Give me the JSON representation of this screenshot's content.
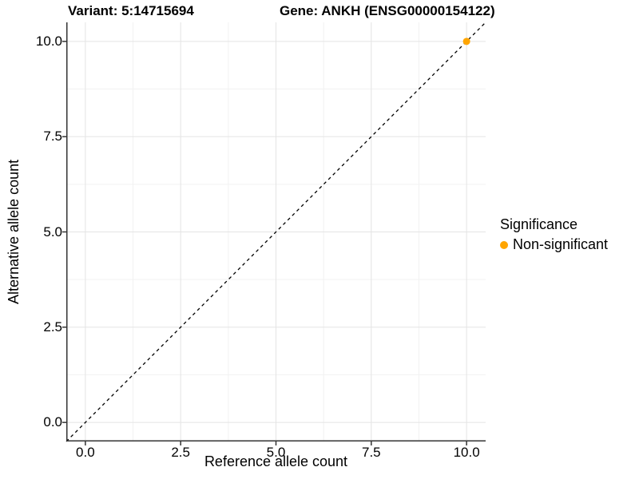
{
  "title": {
    "left": "Variant: 5:14715694",
    "right": "Gene: ANKH (ENSG00000154122)"
  },
  "legend": {
    "title": "Significance",
    "items": [
      {
        "label": "Non-significant",
        "color": "#FFA500"
      }
    ]
  },
  "chart_data": {
    "type": "scatter",
    "title": "Variant: 5:14715694   Gene: ANKH (ENSG00000154122)",
    "xlabel": "Reference allele count",
    "ylabel": "Alternative allele count",
    "xlim": [
      -0.5,
      10.5
    ],
    "ylim": [
      -0.5,
      10.5
    ],
    "x_ticks": [
      0.0,
      2.5,
      5.0,
      7.5,
      10.0
    ],
    "y_ticks": [
      0.0,
      2.5,
      5.0,
      7.5,
      10.0
    ],
    "x_tick_labels": [
      "0.0",
      "2.5",
      "5.0",
      "7.5",
      "10.0"
    ],
    "y_tick_labels": [
      "0.0",
      "2.5",
      "5.0",
      "7.5",
      "10.0"
    ],
    "x_minor_ticks": [
      1.25,
      3.75,
      6.25,
      8.75
    ],
    "y_minor_ticks": [
      1.25,
      3.75,
      6.25,
      8.75
    ],
    "grid": "major+minor",
    "legend_position": "right",
    "series": [
      {
        "name": "Non-significant",
        "color": "#FFA500",
        "points": [
          [
            10,
            10
          ]
        ]
      }
    ],
    "reference_line": {
      "kind": "abline",
      "slope": 1,
      "intercept": 0,
      "linetype": "dashed",
      "color": "#000000"
    }
  },
  "colors": {
    "background": "#FFFFFF",
    "grid_major": "#E4E4E4",
    "grid_minor": "#F2F2F2",
    "axis_line": "#333333",
    "text": "#000000",
    "point": "#FFA500"
  }
}
